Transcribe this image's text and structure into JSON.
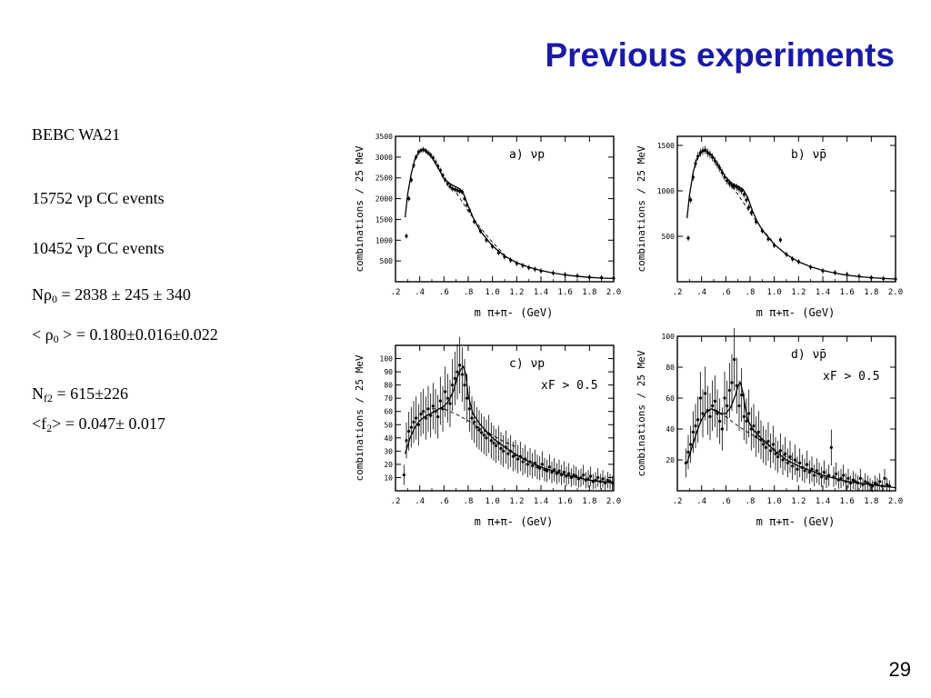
{
  "title": "Previous experiments",
  "page_number": "29",
  "text": {
    "experiment": "BEBC  WA21",
    "events_nu": "15752 νp CC events",
    "events_nubar_num": "10452",
    "events_nubar_sym": "ν",
    "events_nubar_rest": "p CC events",
    "nrho_pre": "Nρ",
    "nrho_sub": "0",
    "nrho_post": " = 2838 ± 245 ± 340",
    "rho_pre": "< ρ",
    "rho_sub": "0",
    "rho_post": " > =  0.180±0.016±0.022",
    "nf2_pre": "N",
    "nf2_sub": "f2",
    "nf2_post": " = 615±226",
    "f2_pre": "<f",
    "f2_sub": "2",
    "f2_post": "> = 0.047± 0.017"
  },
  "chart_data": [
    {
      "type": "scatter",
      "panel_label": "a)",
      "reaction": "νp",
      "cut": "",
      "xlabel": "m π+π- (GeV)",
      "ylabel": "combinations / 25 MeV",
      "xlim": [
        0.2,
        2.0
      ],
      "ylim": [
        0,
        3500
      ],
      "xticks": [
        ".2",
        ".4",
        ".6",
        ".8",
        "1.0",
        "1.2",
        "1.4",
        "1.6",
        "1.8",
        "2.0"
      ],
      "yticks": [
        500,
        1000,
        1500,
        2000,
        2500,
        3000,
        3500
      ],
      "series": [
        {
          "kind": "points",
          "x": [
            0.29,
            0.31,
            0.33,
            0.35,
            0.37,
            0.39,
            0.41,
            0.43,
            0.45,
            0.47,
            0.49,
            0.51,
            0.53,
            0.55,
            0.57,
            0.59,
            0.61,
            0.63,
            0.65,
            0.67,
            0.69,
            0.71,
            0.73,
            0.75,
            0.77,
            0.79,
            0.81,
            0.85,
            0.9,
            0.95,
            1.0,
            1.05,
            1.1,
            1.15,
            1.2,
            1.25,
            1.3,
            1.35,
            1.4,
            1.5,
            1.6,
            1.7,
            1.8,
            1.9,
            2.0
          ],
          "y": [
            1100,
            2000,
            2450,
            2800,
            3000,
            3120,
            3160,
            3180,
            3150,
            3100,
            3050,
            2980,
            2880,
            2780,
            2680,
            2560,
            2450,
            2360,
            2290,
            2240,
            2220,
            2200,
            2180,
            2160,
            2000,
            1850,
            1720,
            1450,
            1220,
            1000,
            850,
            700,
            600,
            520,
            440,
            390,
            340,
            300,
            260,
            210,
            170,
            140,
            110,
            95,
            85
          ]
        },
        {
          "kind": "fit",
          "x": [
            0.28,
            0.3,
            0.33,
            0.36,
            0.4,
            0.44,
            0.48,
            0.52,
            0.56,
            0.6,
            0.65,
            0.7,
            0.73,
            0.76,
            0.8,
            0.85,
            0.9,
            1.0,
            1.1,
            1.2,
            1.3,
            1.4,
            1.5,
            1.6,
            1.7,
            1.8,
            1.9,
            2.0
          ],
          "y": [
            1550,
            2100,
            2600,
            2950,
            3150,
            3170,
            3070,
            2900,
            2700,
            2480,
            2360,
            2280,
            2240,
            2130,
            1820,
            1480,
            1220,
            860,
            620,
            460,
            350,
            270,
            210,
            165,
            130,
            105,
            88,
            80
          ]
        },
        {
          "kind": "background",
          "x": [
            0.64,
            0.7,
            0.8,
            0.9,
            1.0,
            1.1
          ],
          "y": [
            2380,
            2150,
            1700,
            1300,
            950,
            650
          ]
        }
      ]
    },
    {
      "type": "scatter",
      "panel_label": "b)",
      "reaction": "ν̄p",
      "cut": "",
      "xlabel": "m π+π- (GeV)",
      "ylabel": "combinations / 25 MeV",
      "xlim": [
        0.2,
        2.0
      ],
      "ylim": [
        0,
        1600
      ],
      "xticks": [
        ".2",
        ".4",
        ".6",
        ".8",
        "1.0",
        "1.2",
        "1.4",
        "1.6",
        "1.8",
        "2.0"
      ],
      "yticks": [
        500,
        1000,
        1500
      ],
      "series": [
        {
          "kind": "points",
          "x": [
            0.29,
            0.31,
            0.33,
            0.35,
            0.37,
            0.39,
            0.41,
            0.43,
            0.45,
            0.47,
            0.49,
            0.51,
            0.53,
            0.55,
            0.57,
            0.59,
            0.61,
            0.63,
            0.65,
            0.67,
            0.69,
            0.71,
            0.73,
            0.75,
            0.77,
            0.79,
            0.81,
            0.85,
            0.9,
            0.95,
            1.0,
            1.05,
            1.1,
            1.15,
            1.2,
            1.3,
            1.4,
            1.5,
            1.6,
            1.7,
            1.8,
            1.9,
            2.0
          ],
          "y": [
            480,
            900,
            1150,
            1300,
            1380,
            1420,
            1440,
            1450,
            1420,
            1400,
            1370,
            1330,
            1290,
            1250,
            1200,
            1150,
            1110,
            1080,
            1060,
            1050,
            1040,
            1020,
            1000,
            960,
            900,
            820,
            760,
            660,
            560,
            470,
            400,
            460,
            300,
            250,
            220,
            160,
            120,
            100,
            80,
            60,
            45,
            35,
            30
          ]
        },
        {
          "kind": "fit",
          "x": [
            0.28,
            0.3,
            0.33,
            0.36,
            0.4,
            0.44,
            0.48,
            0.52,
            0.56,
            0.6,
            0.65,
            0.7,
            0.74,
            0.78,
            0.82,
            0.86,
            0.9,
            1.0,
            1.1,
            1.2,
            1.3,
            1.4,
            1.5,
            1.6,
            1.7,
            1.8,
            1.9,
            2.0
          ],
          "y": [
            700,
            950,
            1200,
            1350,
            1430,
            1440,
            1400,
            1320,
            1230,
            1150,
            1080,
            1050,
            1020,
            930,
            780,
            660,
            570,
            410,
            300,
            220,
            165,
            125,
            95,
            72,
            56,
            45,
            36,
            30
          ]
        },
        {
          "kind": "background",
          "x": [
            0.62,
            0.7,
            0.8,
            0.9,
            1.0
          ],
          "y": [
            1100,
            960,
            760,
            580,
            420
          ]
        }
      ]
    },
    {
      "type": "scatter",
      "panel_label": "c)",
      "reaction": "νp",
      "cut": "xF > 0.5",
      "xlabel": "m π+π- (GeV)",
      "ylabel": "combinations / 25 MeV",
      "xlim": [
        0.2,
        2.0
      ],
      "ylim": [
        0,
        110
      ],
      "xticks": [
        ".2",
        ".4",
        ".6",
        ".8",
        "1.0",
        "1.2",
        "1.4",
        "1.6",
        "1.8",
        "2.0"
      ],
      "yticks": [
        10,
        20,
        30,
        40,
        50,
        60,
        70,
        80,
        90,
        100
      ],
      "series": [
        {
          "kind": "points",
          "x": [
            0.27,
            0.29,
            0.31,
            0.33,
            0.35,
            0.37,
            0.39,
            0.41,
            0.43,
            0.45,
            0.47,
            0.49,
            0.51,
            0.53,
            0.55,
            0.57,
            0.59,
            0.61,
            0.63,
            0.65,
            0.67,
            0.69,
            0.71,
            0.73,
            0.75,
            0.77,
            0.79,
            0.81,
            0.83,
            0.85,
            0.87,
            0.89,
            0.91,
            0.93,
            0.95,
            0.97,
            0.99,
            1.01,
            1.03,
            1.05,
            1.07,
            1.09,
            1.11,
            1.13,
            1.15,
            1.17,
            1.19,
            1.21,
            1.23,
            1.25,
            1.27,
            1.29,
            1.31,
            1.33,
            1.35,
            1.37,
            1.39,
            1.41,
            1.43,
            1.45,
            1.47,
            1.49,
            1.51,
            1.53,
            1.55,
            1.57,
            1.59,
            1.61,
            1.63,
            1.65,
            1.67,
            1.69,
            1.71,
            1.73,
            1.75,
            1.77,
            1.79,
            1.81,
            1.83,
            1.85,
            1.87,
            1.89,
            1.91,
            1.93,
            1.95,
            1.97,
            1.99
          ],
          "y": [
            12,
            38,
            45,
            48,
            52,
            55,
            50,
            58,
            60,
            55,
            62,
            57,
            64,
            60,
            56,
            68,
            62,
            75,
            70,
            66,
            80,
            85,
            90,
            95,
            88,
            80,
            70,
            62,
            55,
            52,
            48,
            46,
            44,
            42,
            40,
            43,
            38,
            36,
            34,
            36,
            32,
            30,
            33,
            28,
            30,
            26,
            27,
            24,
            26,
            22,
            24,
            20,
            22,
            19,
            21,
            18,
            17,
            20,
            16,
            15,
            18,
            14,
            16,
            13,
            15,
            12,
            14,
            11,
            13,
            10,
            12,
            11,
            9,
            10,
            12,
            8,
            9,
            11,
            7,
            8,
            10,
            7,
            9,
            6,
            8,
            7,
            6
          ]
        },
        {
          "kind": "fit",
          "x": [
            0.28,
            0.32,
            0.36,
            0.4,
            0.44,
            0.48,
            0.52,
            0.56,
            0.6,
            0.64,
            0.68,
            0.71,
            0.74,
            0.76,
            0.78,
            0.8,
            0.84,
            0.9,
            1.0,
            1.1,
            1.2,
            1.3,
            1.4,
            1.5,
            1.6,
            1.7,
            1.8,
            1.9,
            2.0
          ],
          "y": [
            28,
            40,
            48,
            53,
            56,
            58,
            60,
            62,
            64,
            68,
            76,
            86,
            92,
            94,
            88,
            72,
            58,
            50,
            40,
            33,
            27,
            22,
            18,
            15,
            12,
            10,
            8,
            7,
            6
          ]
        },
        {
          "kind": "background",
          "x": [
            0.5,
            0.6,
            0.7,
            0.8,
            0.9,
            1.0,
            1.1,
            1.2
          ],
          "y": [
            62,
            62,
            58,
            53,
            47,
            42,
            37,
            33
          ]
        }
      ]
    },
    {
      "type": "scatter",
      "panel_label": "d)",
      "reaction": "ν̄p",
      "cut": "xF > 0.5",
      "xlabel": "m π+π- (GeV)",
      "ylabel": "combinations / 25 MeV",
      "xlim": [
        0.2,
        2.0
      ],
      "ylim": [
        0,
        100
      ],
      "xticks": [
        ".2",
        ".4",
        ".6",
        ".8",
        "1.0",
        "1.2",
        "1.4",
        "1.6",
        "1.8",
        "2.0"
      ],
      "yticks": [
        20,
        40,
        60,
        80,
        100
      ],
      "series": [
        {
          "kind": "points",
          "x": [
            0.27,
            0.29,
            0.31,
            0.33,
            0.35,
            0.37,
            0.39,
            0.41,
            0.43,
            0.45,
            0.47,
            0.49,
            0.51,
            0.53,
            0.55,
            0.57,
            0.59,
            0.61,
            0.63,
            0.65,
            0.67,
            0.69,
            0.71,
            0.73,
            0.75,
            0.77,
            0.79,
            0.81,
            0.83,
            0.85,
            0.87,
            0.89,
            0.91,
            0.93,
            0.95,
            0.97,
            0.99,
            1.01,
            1.03,
            1.05,
            1.07,
            1.09,
            1.11,
            1.13,
            1.15,
            1.17,
            1.19,
            1.21,
            1.23,
            1.25,
            1.27,
            1.29,
            1.31,
            1.33,
            1.35,
            1.37,
            1.39,
            1.41,
            1.43,
            1.45,
            1.47,
            1.49,
            1.51,
            1.53,
            1.55,
            1.57,
            1.59,
            1.61,
            1.63,
            1.65,
            1.67,
            1.69,
            1.71,
            1.73,
            1.75,
            1.77,
            1.79,
            1.81,
            1.83,
            1.85,
            1.87,
            1.89,
            1.91,
            1.93,
            1.95
          ],
          "y": [
            18,
            25,
            30,
            38,
            42,
            46,
            60,
            50,
            63,
            52,
            48,
            55,
            58,
            50,
            45,
            40,
            60,
            55,
            65,
            70,
            85,
            68,
            55,
            62,
            48,
            45,
            50,
            40,
            42,
            35,
            38,
            33,
            30,
            28,
            32,
            26,
            30,
            24,
            22,
            26,
            20,
            24,
            18,
            22,
            16,
            20,
            14,
            18,
            15,
            13,
            17,
            12,
            14,
            10,
            13,
            11,
            9,
            12,
            8,
            10,
            28,
            9,
            11,
            7,
            8,
            10,
            6,
            8,
            5,
            7,
            6,
            5,
            8,
            4,
            6,
            5,
            4,
            3,
            5,
            4,
            6,
            3,
            8,
            4,
            3
          ]
        },
        {
          "kind": "fit",
          "x": [
            0.28,
            0.32,
            0.36,
            0.4,
            0.44,
            0.48,
            0.52,
            0.56,
            0.6,
            0.64,
            0.68,
            0.7,
            0.72,
            0.74,
            0.76,
            0.78,
            0.82,
            0.88,
            0.95,
            1.0,
            1.1,
            1.2,
            1.3,
            1.4,
            1.5,
            1.6,
            1.7,
            1.8,
            1.9,
            2.0
          ],
          "y": [
            18,
            28,
            38,
            46,
            51,
            53,
            52,
            50,
            50,
            54,
            62,
            68,
            70,
            64,
            54,
            46,
            40,
            35,
            30,
            26,
            20,
            16,
            13,
            10,
            8,
            6,
            5,
            4,
            3,
            2
          ]
        },
        {
          "kind": "background",
          "x": [
            0.5,
            0.6,
            0.7,
            0.8,
            0.9,
            1.0,
            1.1,
            1.2
          ],
          "y": [
            52,
            48,
            42,
            37,
            32,
            27,
            22,
            18
          ]
        }
      ]
    }
  ]
}
